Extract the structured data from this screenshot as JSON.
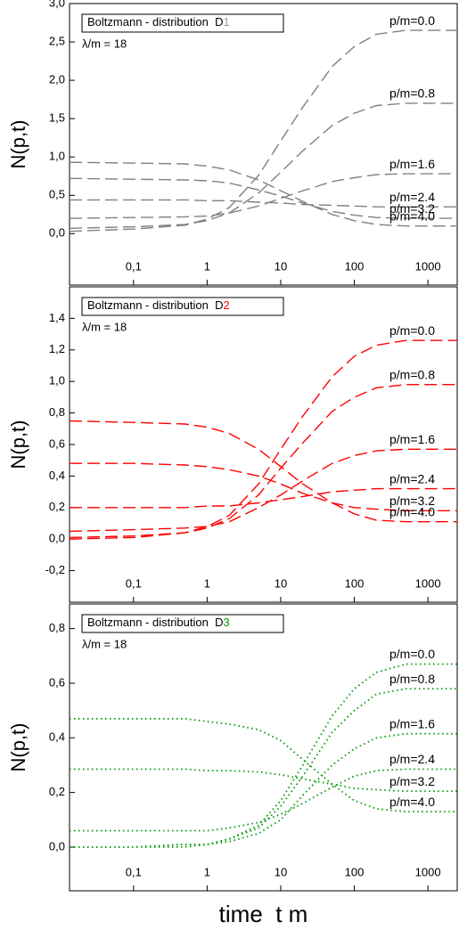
{
  "chart_data": [
    {
      "type": "line",
      "title": "Boltzmann - distribution  D",
      "title_suffix": "1",
      "title_suffix_color": "#9a9a9a",
      "annotation": "λ/m = 18",
      "ylabel": "N(p,t)",
      "dash": "dashed",
      "log_x": true,
      "x": [
        0.0135,
        0.1,
        0.5,
        1,
        2,
        5,
        10,
        20,
        50,
        100,
        200,
        500,
        2500
      ],
      "xlim": [
        0.0135,
        2500
      ],
      "xticks": [
        {
          "value": 0.1,
          "label": "0,1"
        },
        1,
        10,
        100,
        1000
      ],
      "ylim": [
        -0.67,
        3.0
      ],
      "yticks": [
        {
          "value": 0,
          "label": "0,0"
        },
        {
          "value": 0.5,
          "label": "0,5"
        },
        {
          "value": 1,
          "label": "1,0"
        },
        {
          "value": 1.5,
          "label": "1,5"
        },
        {
          "value": 2,
          "label": "2,0"
        },
        {
          "value": 2.5,
          "label": "2,5"
        },
        {
          "value": 3,
          "label": "3,0"
        }
      ],
      "series": [
        {
          "name": "p/m=0.0",
          "color": "#808080",
          "values": [
            0.03,
            0.06,
            0.11,
            0.19,
            0.34,
            0.76,
            1.21,
            1.65,
            2.18,
            2.44,
            2.6,
            2.65,
            2.65
          ]
        },
        {
          "name": "p/m=0.8",
          "color": "#808080",
          "values": [
            0.07,
            0.09,
            0.12,
            0.17,
            0.27,
            0.53,
            0.8,
            1.08,
            1.41,
            1.57,
            1.67,
            1.7,
            1.7
          ]
        },
        {
          "name": "p/m=1.6",
          "color": "#808080",
          "values": [
            0.2,
            0.21,
            0.22,
            0.23,
            0.27,
            0.36,
            0.46,
            0.56,
            0.68,
            0.73,
            0.77,
            0.78,
            0.78
          ]
        },
        {
          "name": "p/m=2.4",
          "color": "#808080",
          "values": [
            0.44,
            0.44,
            0.44,
            0.43,
            0.43,
            0.41,
            0.4,
            0.38,
            0.37,
            0.36,
            0.35,
            0.35,
            0.35
          ]
        },
        {
          "name": "p/m=3.2",
          "color": "#808080",
          "values": [
            0.72,
            0.71,
            0.7,
            0.69,
            0.66,
            0.57,
            0.49,
            0.4,
            0.29,
            0.24,
            0.21,
            0.2,
            0.2
          ]
        },
        {
          "name": "p/m=4.0",
          "color": "#808080",
          "values": [
            0.93,
            0.92,
            0.91,
            0.88,
            0.83,
            0.7,
            0.56,
            0.42,
            0.25,
            0.17,
            0.12,
            0.1,
            0.1
          ]
        }
      ]
    },
    {
      "type": "line",
      "title": "Boltzmann - distribution  D",
      "title_suffix": "2",
      "title_suffix_color": "#ff0000",
      "annotation": "λ/m = 18",
      "ylabel": "N(p,t)",
      "dash": "dashed",
      "log_x": true,
      "x": [
        0.0135,
        0.1,
        0.5,
        1,
        2,
        5,
        10,
        20,
        50,
        100,
        200,
        500,
        2500
      ],
      "xlim": [
        0.0135,
        2500
      ],
      "xticks": [
        {
          "value": 0.1,
          "label": "0,1"
        },
        1,
        10,
        100,
        1000
      ],
      "ylim": [
        -0.4,
        1.6
      ],
      "yticks": [
        {
          "value": -0.2,
          "label": "-0,2"
        },
        {
          "value": 0,
          "label": "0,0"
        },
        {
          "value": 0.2,
          "label": "0,2"
        },
        {
          "value": 0.4,
          "label": "0,4"
        },
        {
          "value": 0.6,
          "label": "0,6"
        },
        {
          "value": 0.8,
          "label": "0,8"
        },
        {
          "value": 1,
          "label": "1,0"
        },
        {
          "value": 1.2,
          "label": "1,2"
        },
        {
          "value": 1.4,
          "label": "1,4"
        }
      ],
      "series": [
        {
          "name": "p/m=0.0",
          "color": "#ff0000",
          "values": [
            0,
            0.01,
            0.04,
            0.08,
            0.15,
            0.35,
            0.57,
            0.78,
            1.03,
            1.16,
            1.23,
            1.26,
            1.26
          ]
        },
        {
          "name": "p/m=0.8",
          "color": "#ff0000",
          "values": [
            0.01,
            0.02,
            0.04,
            0.07,
            0.13,
            0.28,
            0.45,
            0.61,
            0.81,
            0.9,
            0.96,
            0.98,
            0.98
          ]
        },
        {
          "name": "p/m=1.6",
          "color": "#ff0000",
          "values": [
            0.05,
            0.06,
            0.07,
            0.08,
            0.11,
            0.2,
            0.28,
            0.37,
            0.48,
            0.53,
            0.56,
            0.57,
            0.57
          ]
        },
        {
          "name": "p/m=2.4",
          "color": "#ff0000",
          "values": [
            0.2,
            0.2,
            0.2,
            0.21,
            0.21,
            0.23,
            0.25,
            0.27,
            0.3,
            0.31,
            0.32,
            0.32,
            0.32
          ]
        },
        {
          "name": "p/m=3.2",
          "color": "#ff0000",
          "values": [
            0.48,
            0.48,
            0.47,
            0.46,
            0.44,
            0.4,
            0.35,
            0.29,
            0.23,
            0.2,
            0.19,
            0.18,
            0.18
          ]
        },
        {
          "name": "p/m=4.0",
          "color": "#ff0000",
          "values": [
            0.75,
            0.74,
            0.73,
            0.71,
            0.67,
            0.57,
            0.46,
            0.35,
            0.23,
            0.16,
            0.12,
            0.11,
            0.11
          ]
        }
      ]
    },
    {
      "type": "line",
      "title": "Boltzmann - distribution  D",
      "title_suffix": "3",
      "title_suffix_color": "#009900",
      "annotation": "λ/m = 18",
      "ylabel": "N(p,t)",
      "xlabel": "time  t m",
      "dash": "dotted",
      "log_x": true,
      "x": [
        0.0135,
        0.1,
        0.5,
        1,
        2,
        5,
        10,
        20,
        50,
        100,
        200,
        500,
        2500
      ],
      "xlim": [
        0.0135,
        2500
      ],
      "xticks": [
        {
          "value": 0.1,
          "label": "0,1"
        },
        1,
        10,
        100,
        1000
      ],
      "ylim": [
        -0.16,
        0.89
      ],
      "yticks": [
        {
          "value": 0,
          "label": "0,0"
        },
        {
          "value": 0.2,
          "label": "0,2"
        },
        {
          "value": 0.4,
          "label": "0,4"
        },
        {
          "value": 0.6,
          "label": "0,6"
        },
        {
          "value": 0.8,
          "label": "0,8"
        }
      ],
      "series": [
        {
          "name": "p/m=0.0",
          "color": "#009900",
          "values": [
            0,
            0,
            0.01,
            0.01,
            0.03,
            0.08,
            0.17,
            0.3,
            0.48,
            0.58,
            0.64,
            0.67,
            0.67
          ]
        },
        {
          "name": "p/m=0.8",
          "color": "#009900",
          "values": [
            0,
            0,
            0.01,
            0.01,
            0.03,
            0.07,
            0.15,
            0.26,
            0.42,
            0.5,
            0.56,
            0.58,
            0.58
          ]
        },
        {
          "name": "p/m=1.6",
          "color": "#009900",
          "values": [
            0,
            0,
            0,
            0.01,
            0.02,
            0.05,
            0.1,
            0.19,
            0.3,
            0.36,
            0.4,
            0.415,
            0.415
          ]
        },
        {
          "name": "p/m=2.4",
          "color": "#009900",
          "values": [
            0.06,
            0.06,
            0.06,
            0.06,
            0.07,
            0.09,
            0.12,
            0.16,
            0.22,
            0.26,
            0.28,
            0.285,
            0.285
          ]
        },
        {
          "name": "p/m=3.2",
          "color": "#009900",
          "values": [
            0.285,
            0.285,
            0.285,
            0.28,
            0.28,
            0.275,
            0.265,
            0.25,
            0.23,
            0.215,
            0.21,
            0.205,
            0.205
          ]
        },
        {
          "name": "p/m=4.0",
          "color": "#009900",
          "values": [
            0.47,
            0.47,
            0.47,
            0.46,
            0.45,
            0.43,
            0.39,
            0.32,
            0.23,
            0.17,
            0.14,
            0.13,
            0.13
          ]
        }
      ]
    }
  ]
}
